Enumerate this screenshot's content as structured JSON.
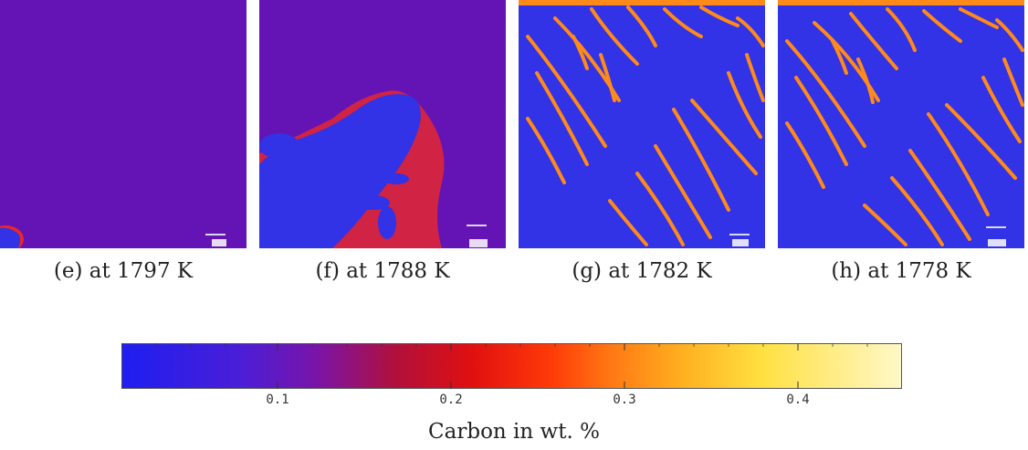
{
  "figure": {
    "panels": [
      {
        "caption": "(e) at 1797 K"
      },
      {
        "caption": "(f) at 1788 K"
      },
      {
        "caption": "(g) at 1782 K"
      },
      {
        "caption": "(h) at 1778 K"
      }
    ],
    "colors": {
      "liquid": "#6414b4",
      "solid": "#3232e6",
      "interface": "#ff2a12",
      "segregation": "#ff8a1a"
    },
    "colorbar": {
      "title": "Carbon in wt. %",
      "tick_labels": [
        "0.1",
        "0.2",
        "0.3",
        "0.4"
      ],
      "range": [
        0.01,
        0.46
      ]
    }
  }
}
